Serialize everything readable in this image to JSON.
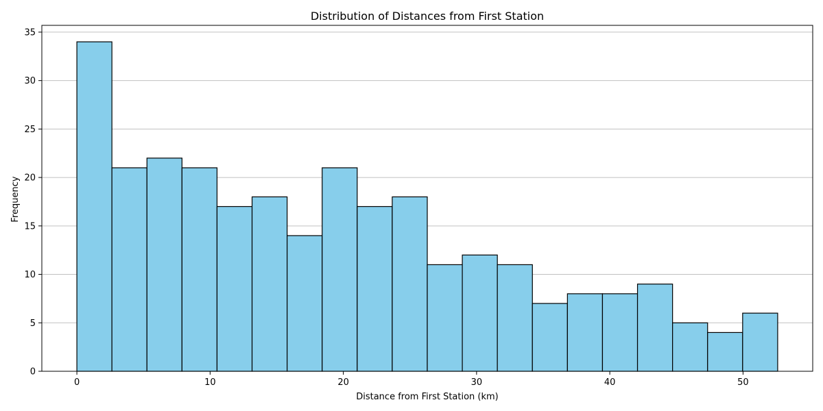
{
  "chart_data": {
    "type": "bar",
    "subtype": "histogram",
    "title": "Distribution of Distances from First Station",
    "xlabel": "Distance from First Station (km)",
    "ylabel": "Frequency",
    "bin_edges": [
      0,
      2.63,
      5.26,
      7.89,
      10.52,
      13.15,
      15.78,
      18.41,
      21.04,
      23.67,
      26.3,
      28.93,
      31.56,
      34.19,
      36.82,
      39.45,
      42.08,
      44.71,
      47.34,
      49.97,
      52.6
    ],
    "values": [
      34,
      21,
      22,
      21,
      17,
      18,
      14,
      21,
      17,
      18,
      11,
      12,
      11,
      7,
      8,
      8,
      9,
      5,
      4,
      6
    ],
    "xlim": [
      -2.63,
      55.23
    ],
    "ylim": [
      0,
      35.7
    ],
    "xticks": [
      0,
      10,
      20,
      30,
      40,
      50
    ],
    "yticks": [
      0,
      5,
      10,
      15,
      20,
      25,
      30,
      35
    ],
    "grid": "y-axis only",
    "bar_color": "#87ceeb",
    "bar_edge_color": "#000000",
    "grid_color": "#c0c0c0"
  }
}
